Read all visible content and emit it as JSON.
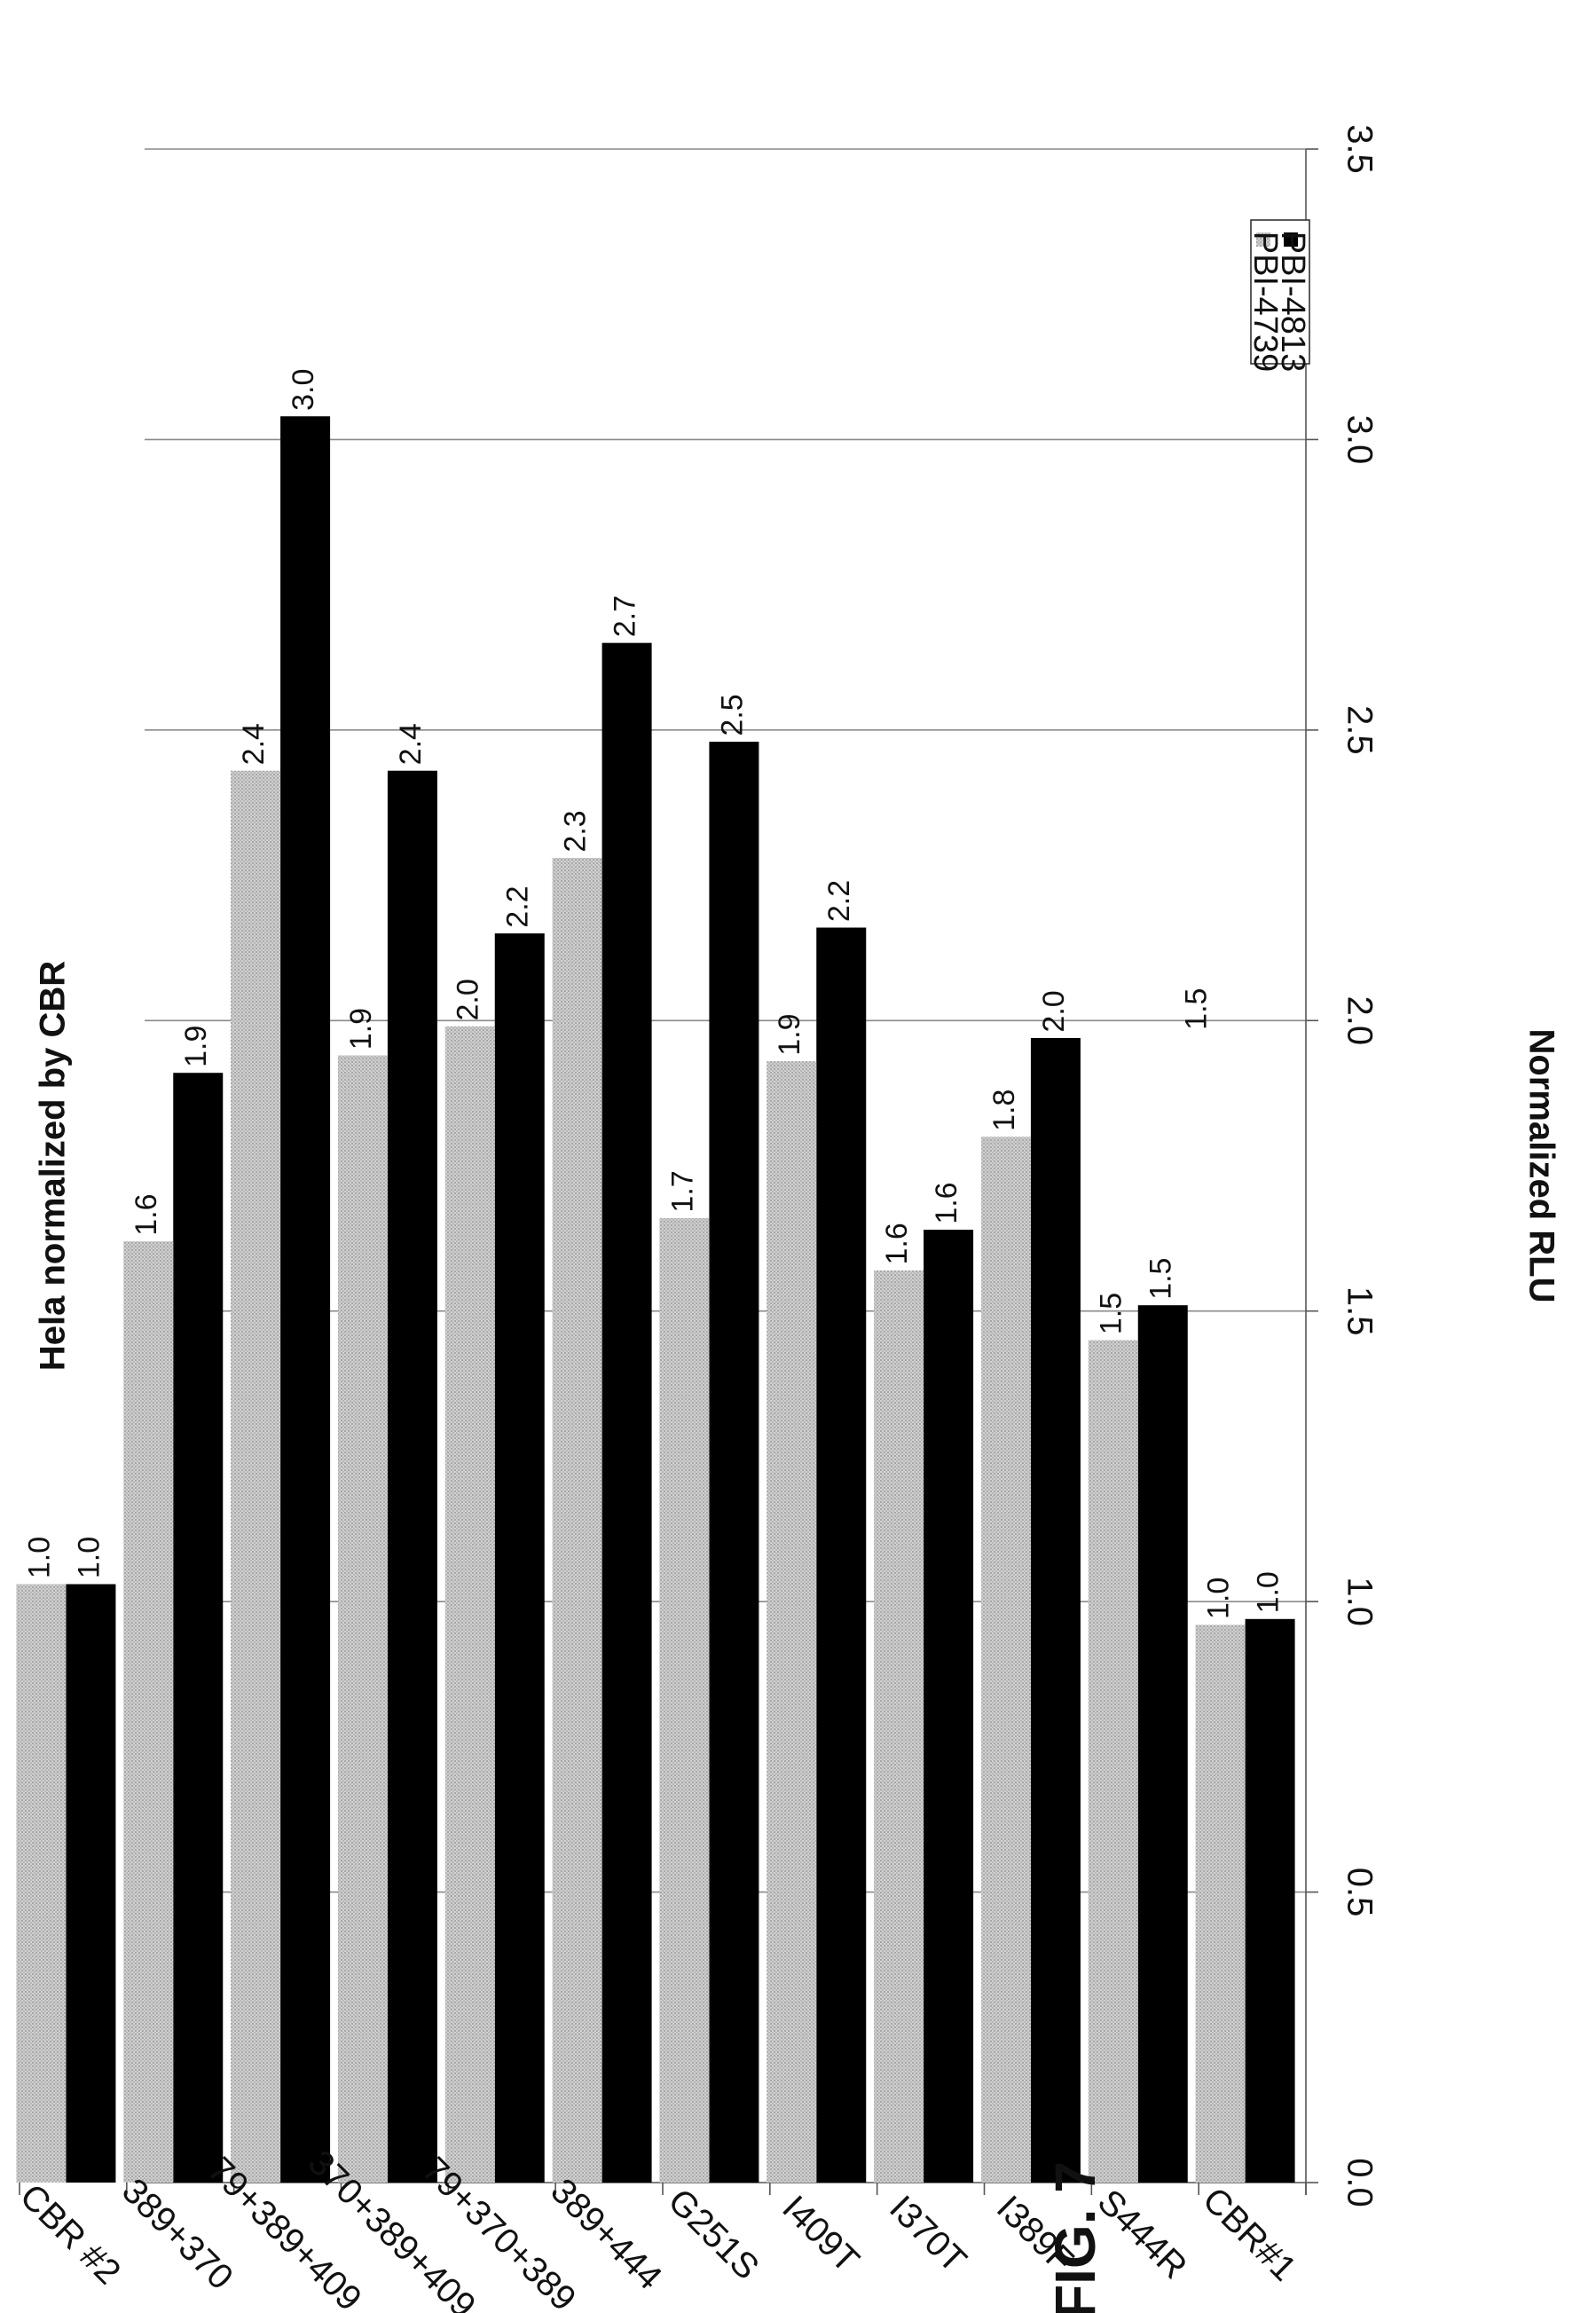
{
  "chart_data": {
    "type": "bar",
    "orientation": "rotated",
    "title": "Hela normalized by CBR",
    "ylabel": "Normalized RLU",
    "figure_label": "FIG. 7",
    "ylim": [
      0,
      3.5
    ],
    "yticks": [
      "0.0",
      "0.5",
      "1.0",
      "1.5",
      "2.0",
      "2.5",
      "3.0",
      "3.5"
    ],
    "categories": [
      "CBR#1",
      "S444R",
      "I389F",
      "I370T",
      "I409T",
      "G251S",
      "389+444",
      "79+370+389",
      "370+389+409",
      "79+389+409",
      "389+370",
      "CBR #2"
    ],
    "series": [
      {
        "name": "PBI-4813",
        "color": "#000000",
        "values": [
          0.97,
          1.51,
          1.97,
          1.64,
          2.16,
          2.48,
          2.65,
          2.15,
          2.43,
          3.04,
          1.91,
          1.03
        ],
        "labels": [
          "1.0",
          "1.5",
          "2.0",
          "1.6",
          "2.2",
          "2.5",
          "2.7",
          "2.2",
          "2.4",
          "3.0",
          "1.9",
          "1.0"
        ]
      },
      {
        "name": "PBI-4739",
        "color": "#c8c8c8",
        "values": [
          0.96,
          1.45,
          1.8,
          1.57,
          1.93,
          1.66,
          2.28,
          1.99,
          1.94,
          2.43,
          1.62,
          1.03
        ],
        "labels": [
          "1.0",
          "1.5",
          "1.8",
          "1.6",
          "1.9",
          "1.7",
          "2.3",
          "2.0",
          "1.9",
          "2.4",
          "1.6",
          "1.0"
        ]
      }
    ],
    "extra_labels": [
      "1.5"
    ],
    "legend": "top-right",
    "grid": true
  }
}
